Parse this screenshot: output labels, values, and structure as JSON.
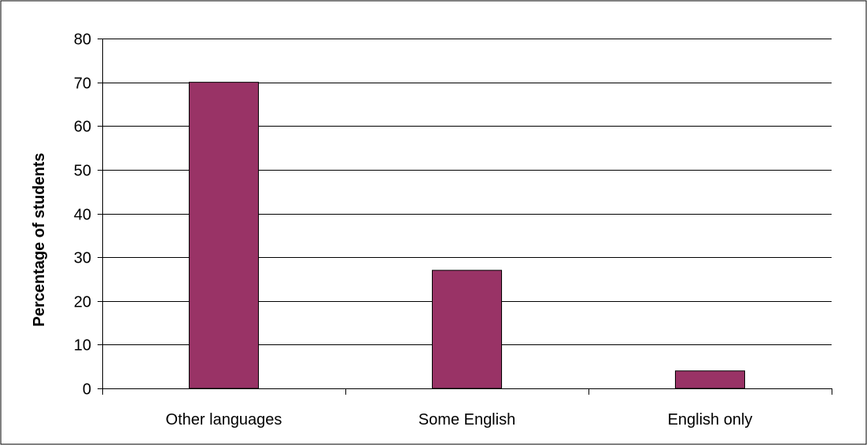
{
  "chart_data": {
    "type": "bar",
    "title": "",
    "xlabel": "",
    "ylabel": "Percentage of students",
    "categories": [
      "Other languages",
      "Some English",
      "English only"
    ],
    "series": [
      {
        "values": [
          70,
          27,
          4
        ]
      }
    ],
    "ylim": [
      0,
      80
    ],
    "yticks": [
      0,
      10,
      20,
      30,
      40,
      50,
      60,
      70,
      80
    ],
    "grid": true,
    "legend": "none",
    "colors": {
      "bar": "#993366",
      "bar_outline": "#000000",
      "grid": "#000000",
      "axis": "#000000",
      "background": "#ffffff"
    }
  }
}
